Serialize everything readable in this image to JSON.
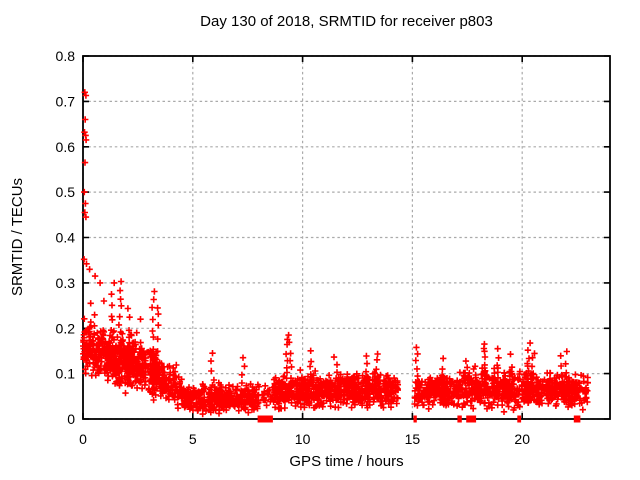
{
  "title": "Day 130 of 2018, SRMTID for receiver p803",
  "chart_data": {
    "type": "scatter",
    "title": "Day 130 of 2018, SRMTID for receiver p803",
    "xlabel": "GPS time / hours",
    "ylabel": "SRMTID / TECUs",
    "xlim": [
      0,
      24
    ],
    "ylim": [
      0,
      0.8
    ],
    "xticks": [
      0,
      5,
      10,
      15,
      20
    ],
    "xtick_labels": [
      "0",
      "5",
      "10",
      "15",
      "20"
    ],
    "yticks": [
      0,
      0.1,
      0.2,
      0.3,
      0.4,
      0.5,
      0.6,
      0.7,
      0.8
    ],
    "ytick_labels": [
      "0",
      "0.1",
      "0.2",
      "0.3",
      "0.4",
      "0.5",
      "0.6",
      "0.7",
      "0.8"
    ],
    "grid": true,
    "legend": "none",
    "marker": "plus",
    "marker_color": "#ff0000",
    "grid_color": "#aaaaaa",
    "frame_color": "#000000",
    "seed": 130,
    "outlier_points": [
      [
        0.08,
        0.72
      ],
      [
        0.13,
        0.713
      ],
      [
        0.1,
        0.66
      ],
      [
        0.07,
        0.632
      ],
      [
        0.12,
        0.625
      ],
      [
        0.14,
        0.615
      ],
      [
        0.09,
        0.565
      ],
      [
        0.06,
        0.5
      ],
      [
        0.11,
        0.475
      ],
      [
        0.08,
        0.455
      ],
      [
        0.13,
        0.445
      ],
      [
        0.05,
        0.352
      ],
      [
        0.16,
        0.342
      ],
      [
        0.3,
        0.33
      ],
      [
        0.55,
        0.315
      ],
      [
        0.78,
        0.3
      ],
      [
        0.95,
        0.26
      ],
      [
        0.35,
        0.255
      ],
      [
        1.42,
        0.3
      ],
      [
        1.3,
        0.275
      ],
      [
        2.62,
        0.22
      ]
    ],
    "spike_columns": [
      {
        "x": 1.35,
        "ylo": 0.12,
        "yhi": 0.25,
        "n": 8
      },
      {
        "x": 1.7,
        "ylo": 0.1,
        "yhi": 0.3,
        "n": 12
      },
      {
        "x": 2.1,
        "ylo": 0.1,
        "yhi": 0.24,
        "n": 8
      },
      {
        "x": 3.2,
        "ylo": 0.09,
        "yhi": 0.285,
        "n": 10
      },
      {
        "x": 3.45,
        "ylo": 0.08,
        "yhi": 0.25,
        "n": 8
      },
      {
        "x": 5.9,
        "ylo": 0.05,
        "yhi": 0.145,
        "n": 6
      },
      {
        "x": 7.3,
        "ylo": 0.04,
        "yhi": 0.14,
        "n": 6
      },
      {
        "x": 9.3,
        "ylo": 0.07,
        "yhi": 0.19,
        "n": 9
      },
      {
        "x": 9.45,
        "ylo": 0.06,
        "yhi": 0.165,
        "n": 7
      },
      {
        "x": 10.4,
        "ylo": 0.06,
        "yhi": 0.145,
        "n": 6
      },
      {
        "x": 11.5,
        "ylo": 0.06,
        "yhi": 0.135,
        "n": 5
      },
      {
        "x": 12.9,
        "ylo": 0.06,
        "yhi": 0.135,
        "n": 6
      },
      {
        "x": 13.4,
        "ylo": 0.06,
        "yhi": 0.145,
        "n": 6
      },
      {
        "x": 15.2,
        "ylo": 0.06,
        "yhi": 0.16,
        "n": 7
      },
      {
        "x": 16.4,
        "ylo": 0.05,
        "yhi": 0.13,
        "n": 5
      },
      {
        "x": 17.5,
        "ylo": 0.05,
        "yhi": 0.13,
        "n": 5
      },
      {
        "x": 18.3,
        "ylo": 0.07,
        "yhi": 0.17,
        "n": 9
      },
      {
        "x": 18.9,
        "ylo": 0.06,
        "yhi": 0.155,
        "n": 7
      },
      {
        "x": 19.5,
        "ylo": 0.06,
        "yhi": 0.14,
        "n": 5
      },
      {
        "x": 20.3,
        "ylo": 0.07,
        "yhi": 0.165,
        "n": 8
      },
      {
        "x": 20.5,
        "ylo": 0.06,
        "yhi": 0.15,
        "n": 6
      },
      {
        "x": 21.8,
        "ylo": 0.05,
        "yhi": 0.14,
        "n": 5
      },
      {
        "x": 22.0,
        "ylo": 0.05,
        "yhi": 0.145,
        "n": 6
      }
    ],
    "bands": [
      {
        "x0": 0.0,
        "x1": 0.6,
        "n": 75,
        "y0": 0.16,
        "y1": 0.15,
        "s": 0.05
      },
      {
        "x0": 0.6,
        "x1": 1.6,
        "n": 170,
        "y0": 0.15,
        "y1": 0.13,
        "s": 0.045
      },
      {
        "x0": 1.6,
        "x1": 2.6,
        "n": 170,
        "y0": 0.13,
        "y1": 0.12,
        "s": 0.045
      },
      {
        "x0": 2.6,
        "x1": 3.6,
        "n": 140,
        "y0": 0.12,
        "y1": 0.09,
        "s": 0.04
      },
      {
        "x0": 3.6,
        "x1": 4.6,
        "n": 95,
        "y0": 0.09,
        "y1": 0.055,
        "s": 0.03
      },
      {
        "x0": 4.6,
        "x1": 5.4,
        "n": 75,
        "y0": 0.05,
        "y1": 0.04,
        "s": 0.02
      },
      {
        "x0": 5.4,
        "x1": 8.0,
        "n": 270,
        "y0": 0.045,
        "y1": 0.045,
        "s": 0.022
      },
      {
        "x0": 8.0,
        "x1": 8.7,
        "n": 22,
        "y0": 0.05,
        "y1": 0.05,
        "s": 0.02
      },
      {
        "x0": 8.7,
        "x1": 11.3,
        "n": 300,
        "y0": 0.06,
        "y1": 0.06,
        "s": 0.028
      },
      {
        "x0": 11.3,
        "x1": 14.35,
        "n": 340,
        "y0": 0.065,
        "y1": 0.065,
        "s": 0.028
      },
      {
        "x0": 15.1,
        "x1": 17.3,
        "n": 230,
        "y0": 0.06,
        "y1": 0.065,
        "s": 0.028
      },
      {
        "x0": 17.3,
        "x1": 19.9,
        "n": 280,
        "y0": 0.07,
        "y1": 0.065,
        "s": 0.032
      },
      {
        "x0": 19.95,
        "x1": 23.0,
        "n": 330,
        "y0": 0.065,
        "y1": 0.06,
        "s": 0.028
      }
    ],
    "zero_value_segments": [
      [
        7.95,
        8.65
      ],
      [
        15.05,
        15.2
      ],
      [
        17.05,
        17.25
      ],
      [
        17.45,
        17.9
      ],
      [
        19.78,
        19.95
      ],
      [
        22.35,
        22.65
      ]
    ]
  }
}
